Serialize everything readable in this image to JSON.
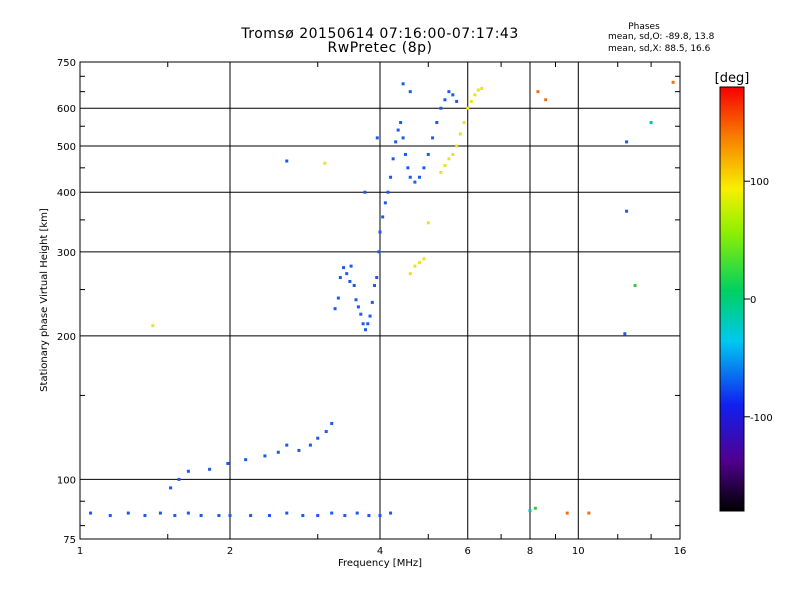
{
  "header": {
    "title": "Tromsø 20150614 07:16:00-07:17:43",
    "subtitle": "RwPretec (8p)"
  },
  "phases": {
    "title": "Phases",
    "o_line": "mean, sd,O:  -89.8,  13.8",
    "x_line": "mean, sd,X:  88.5,  16.6"
  },
  "chart_data": {
    "type": "scatter",
    "xlabel": "Frequency [MHz]",
    "ylabel": "Stationary phase Virtual Height [km]",
    "x_scale": "log",
    "y_scale": "log",
    "xlim": [
      1,
      16
    ],
    "ylim": [
      75,
      750
    ],
    "x_ticks": [
      1,
      2,
      4,
      6,
      8,
      10,
      16
    ],
    "x_tick_labels": [
      "1",
      "2",
      "4",
      "6",
      "8",
      "10",
      "16"
    ],
    "y_ticks": [
      75,
      100,
      200,
      300,
      400,
      500,
      600,
      750
    ],
    "y_tick_labels": [
      "75",
      "100",
      "200",
      "300",
      "400",
      "500",
      "600",
      "750"
    ],
    "grid": true,
    "colorbar": {
      "label": "[deg]",
      "range": [
        -180,
        180
      ],
      "ticks": [
        100,
        0,
        -100
      ],
      "tick_labels": [
        "100",
        "0",
        "-100"
      ]
    },
    "series": [
      {
        "phase_deg": -100,
        "color": "#1a5af0",
        "points": [
          [
            1.05,
            85
          ],
          [
            1.15,
            84
          ],
          [
            1.25,
            85
          ],
          [
            1.35,
            84
          ],
          [
            1.45,
            85
          ],
          [
            1.55,
            84
          ],
          [
            1.65,
            85
          ],
          [
            1.75,
            84
          ],
          [
            1.9,
            84
          ],
          [
            2.0,
            84
          ],
          [
            2.2,
            84
          ],
          [
            2.4,
            84
          ],
          [
            2.6,
            85
          ],
          [
            2.8,
            84
          ],
          [
            3.0,
            84
          ],
          [
            3.2,
            85
          ],
          [
            3.4,
            84
          ],
          [
            3.6,
            85
          ],
          [
            3.8,
            84
          ],
          [
            4.0,
            84
          ],
          [
            4.2,
            85
          ],
          [
            1.52,
            96
          ],
          [
            1.58,
            100
          ],
          [
            1.65,
            104
          ],
          [
            1.82,
            105
          ],
          [
            1.98,
            108
          ],
          [
            2.15,
            110
          ],
          [
            2.35,
            112
          ],
          [
            2.5,
            114
          ],
          [
            2.6,
            118
          ],
          [
            2.75,
            115
          ],
          [
            2.9,
            118
          ],
          [
            3.0,
            122
          ],
          [
            3.12,
            126
          ],
          [
            3.2,
            131
          ],
          [
            3.25,
            228
          ],
          [
            3.3,
            240
          ],
          [
            3.33,
            265
          ],
          [
            3.38,
            278
          ],
          [
            3.43,
            270
          ],
          [
            3.48,
            260
          ],
          [
            3.5,
            280
          ],
          [
            3.55,
            255
          ],
          [
            3.58,
            238
          ],
          [
            3.62,
            230
          ],
          [
            3.66,
            222
          ],
          [
            3.7,
            212
          ],
          [
            3.74,
            206
          ],
          [
            3.78,
            212
          ],
          [
            3.82,
            220
          ],
          [
            3.86,
            235
          ],
          [
            3.9,
            255
          ],
          [
            3.94,
            265
          ],
          [
            3.98,
            300
          ],
          [
            4.0,
            330
          ],
          [
            4.05,
            355
          ],
          [
            4.1,
            380
          ],
          [
            4.15,
            400
          ],
          [
            4.2,
            430
          ],
          [
            4.25,
            470
          ],
          [
            4.3,
            510
          ],
          [
            4.35,
            540
          ],
          [
            4.4,
            560
          ],
          [
            4.45,
            520
          ],
          [
            4.5,
            480
          ],
          [
            4.55,
            450
          ],
          [
            4.6,
            430
          ],
          [
            4.7,
            420
          ],
          [
            4.8,
            430
          ],
          [
            4.9,
            450
          ],
          [
            5.0,
            480
          ],
          [
            5.1,
            520
          ],
          [
            5.2,
            560
          ],
          [
            5.3,
            600
          ],
          [
            5.4,
            625
          ],
          [
            5.5,
            650
          ],
          [
            5.6,
            640
          ],
          [
            5.7,
            620
          ],
          [
            3.73,
            400
          ],
          [
            3.95,
            520
          ],
          [
            2.6,
            465
          ],
          [
            4.45,
            675
          ],
          [
            4.6,
            650
          ],
          [
            12.5,
            510
          ],
          [
            12.5,
            365
          ],
          [
            12.4,
            202
          ]
        ]
      },
      {
        "phase_deg": 95,
        "color": "#f0e020",
        "points": [
          [
            4.6,
            270
          ],
          [
            4.7,
            280
          ],
          [
            4.8,
            285
          ],
          [
            4.9,
            290
          ],
          [
            5.0,
            345
          ],
          [
            5.3,
            440
          ],
          [
            5.4,
            455
          ],
          [
            5.5,
            470
          ],
          [
            5.6,
            480
          ],
          [
            5.7,
            500
          ],
          [
            5.8,
            530
          ],
          [
            5.9,
            560
          ],
          [
            6.0,
            600
          ],
          [
            6.1,
            620
          ],
          [
            6.2,
            640
          ],
          [
            6.3,
            655
          ],
          [
            6.4,
            660
          ],
          [
            1.4,
            210
          ],
          [
            3.1,
            460
          ]
        ]
      },
      {
        "phase_deg": 150,
        "color": "#f07010",
        "points": [
          [
            8.3,
            650
          ],
          [
            8.6,
            625
          ],
          [
            15.5,
            680
          ],
          [
            9.5,
            85
          ],
          [
            10.5,
            85
          ]
        ]
      },
      {
        "phase_deg": 60,
        "color": "#40c040",
        "points": [
          [
            8.2,
            87
          ],
          [
            13.0,
            255
          ]
        ]
      },
      {
        "phase_deg": -50,
        "color": "#00c0c0",
        "points": [
          [
            14.0,
            560
          ],
          [
            8.0,
            86
          ]
        ]
      }
    ]
  }
}
